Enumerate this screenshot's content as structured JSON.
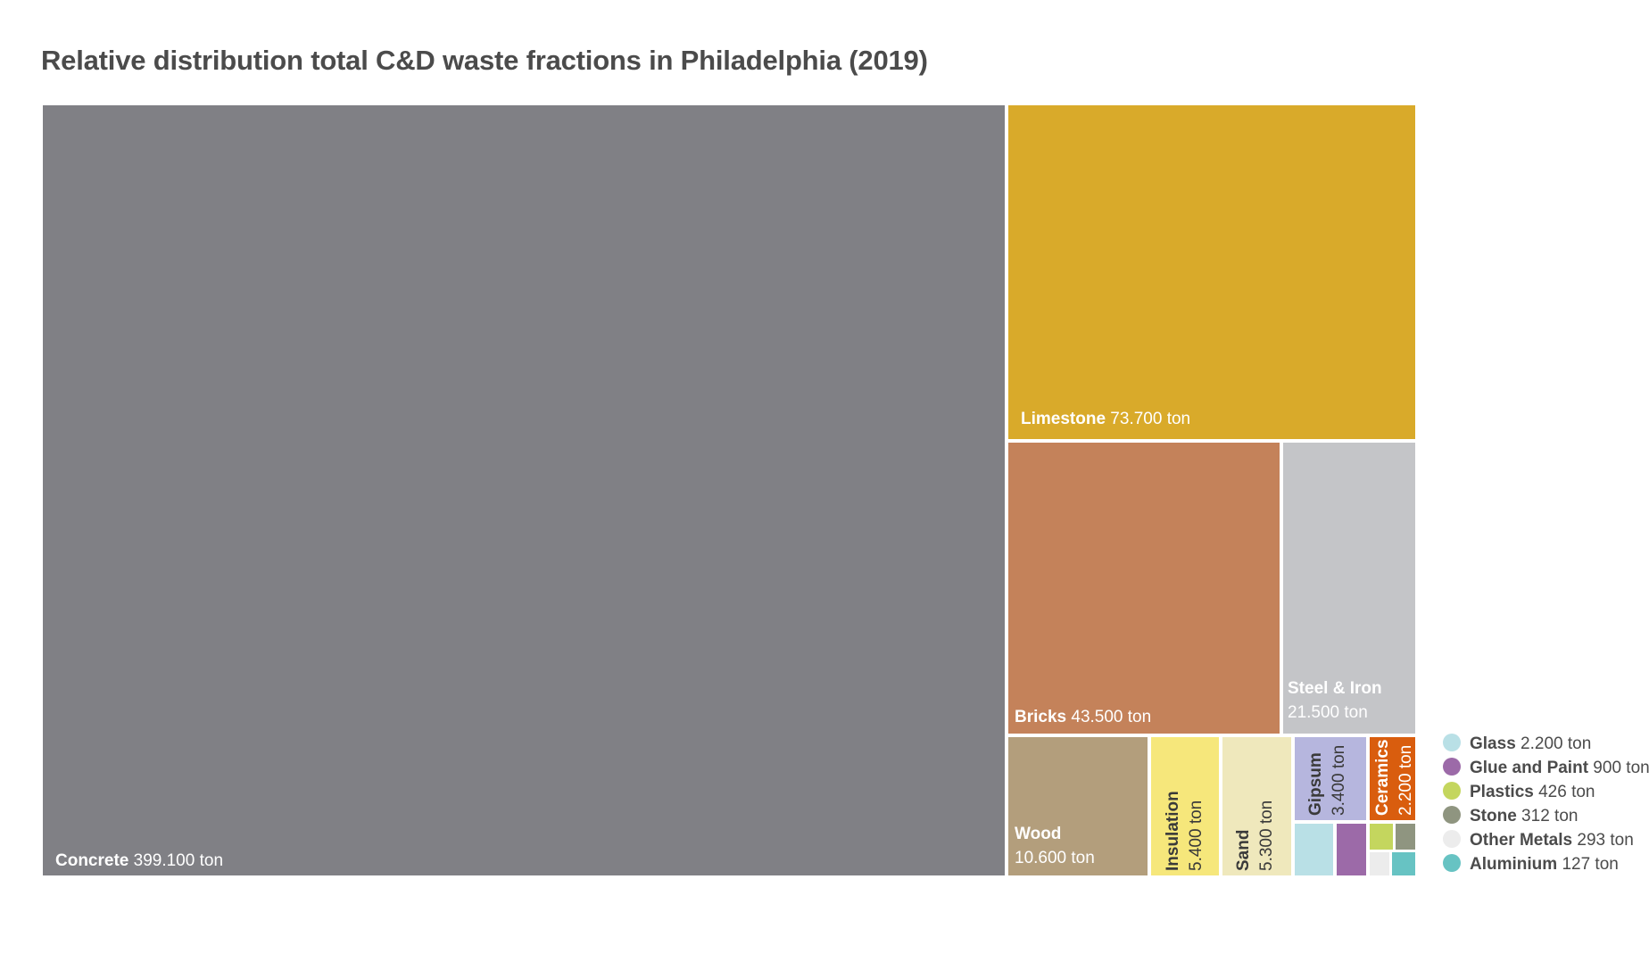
{
  "chart_data": {
    "type": "treemap",
    "title": "Relative distribution total C&D waste fractions in Philadelphia (2019)",
    "unit": "ton",
    "series": [
      {
        "name": "Concrete",
        "value": 399100,
        "label": "399.100 ton",
        "color": "#808085"
      },
      {
        "name": "Limestone",
        "value": 73700,
        "label": "73.700 ton",
        "color": "#d9aa2a"
      },
      {
        "name": "Bricks",
        "value": 43500,
        "label": "43.500 ton",
        "color": "#c4825a"
      },
      {
        "name": "Steel & Iron",
        "value": 21500,
        "label": "21.500 ton",
        "color": "#c4c5c8"
      },
      {
        "name": "Wood",
        "value": 10600,
        "label": "10.600 ton",
        "color": "#b39e7c"
      },
      {
        "name": "Insulation",
        "value": 5400,
        "label": "5.400 ton",
        "color": "#f6e77b"
      },
      {
        "name": "Sand",
        "value": 5300,
        "label": "5.300 ton",
        "color": "#efe8bc"
      },
      {
        "name": "Gipsum",
        "value": 3400,
        "label": "3.400 ton",
        "color": "#b6b6de"
      },
      {
        "name": "Ceramics",
        "value": 2200,
        "label": "2.200 ton",
        "color": "#d95d0e"
      },
      {
        "name": "Glass",
        "value": 2200,
        "label": "2.200 ton",
        "color": "#b9e0e6"
      },
      {
        "name": "Glue and Paint",
        "value": 900,
        "label": "900 ton",
        "color": "#9c6aa8"
      },
      {
        "name": "Plastics",
        "value": 426,
        "label": "426 ton",
        "color": "#c4d65e"
      },
      {
        "name": "Stone",
        "value": 312,
        "label": "312 ton",
        "color": "#8f9580"
      },
      {
        "name": "Other Metals",
        "value": 293,
        "label": "293 ton",
        "color": "#ececec"
      },
      {
        "name": "Aluminium",
        "value": 127,
        "label": "127 ton",
        "color": "#67c3c3"
      }
    ],
    "legend": [
      "Glass",
      "Glue and Paint",
      "Plastics",
      "Stone",
      "Other Metals",
      "Aluminium"
    ],
    "legend_position": "bottom-right"
  }
}
